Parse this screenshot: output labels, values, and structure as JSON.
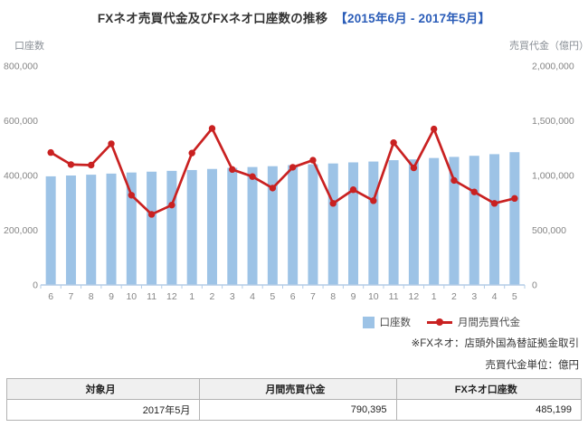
{
  "title": {
    "main": "FXネオ売買代金及びFXネオ口座数の推移",
    "period": "【2015年6月 - 2017年5月】"
  },
  "axes": {
    "left_label": "口座数",
    "right_label": "売買代金（億円）"
  },
  "legend": {
    "bars": "口座数",
    "line": "月間売買代金"
  },
  "notes": {
    "fxneo": "※FXネオ：店頭外国為替証拠金取引",
    "unit": "売買代金単位：億円"
  },
  "colors": {
    "bar": "#9dc3e6",
    "line": "#c92121",
    "axis": "#b3cce6",
    "tick_text": "#858585",
    "accent_blue": "#2a5cb8"
  },
  "table": {
    "headers": [
      "対象月",
      "月間売買代金",
      "FXネオ口座数"
    ],
    "row": [
      "2017年5月",
      "790,395",
      "485,199"
    ]
  },
  "chart_data": {
    "type": "bar+line combo",
    "title": "FXネオ売買代金及びFXネオ口座数の推移 【2015年6月 - 2017年5月】",
    "categories": [
      "6",
      "7",
      "8",
      "9",
      "10",
      "11",
      "12",
      "1",
      "2",
      "3",
      "4",
      "5",
      "6",
      "7",
      "8",
      "9",
      "10",
      "11",
      "12",
      "1",
      "2",
      "3",
      "4",
      "5"
    ],
    "categories_meaning": "months from 2015-06 through 2017-05",
    "series": [
      {
        "name": "口座数",
        "type": "bar",
        "axis": "left",
        "values": [
          397000,
          400000,
          403000,
          407000,
          411000,
          414000,
          417000,
          420000,
          424000,
          428000,
          431000,
          434000,
          438000,
          441000,
          444000,
          448000,
          451000,
          456000,
          459000,
          464000,
          468000,
          472000,
          478000,
          485199
        ]
      },
      {
        "name": "月間売買代金",
        "type": "line",
        "axis": "right",
        "values": [
          1210000,
          1100000,
          1095000,
          1290000,
          820000,
          645000,
          730000,
          1205000,
          1430000,
          1055000,
          990000,
          885000,
          1075000,
          1140000,
          745000,
          870000,
          770000,
          1300000,
          1070000,
          1425000,
          955000,
          850000,
          745000,
          790395
        ]
      }
    ],
    "left_axis": {
      "label": "口座数",
      "min": 0,
      "max": 800000,
      "tick_labels": [
        "0",
        "200,000",
        "400,000",
        "600,000",
        "800,000"
      ]
    },
    "right_axis": {
      "label": "売買代金（億円）",
      "min": 0,
      "max": 2000000,
      "tick_labels": [
        "0",
        "500,000",
        "1,000,000",
        "1,500,000",
        "2,000,000"
      ]
    },
    "grid": false,
    "legend_position": "bottom-right"
  }
}
